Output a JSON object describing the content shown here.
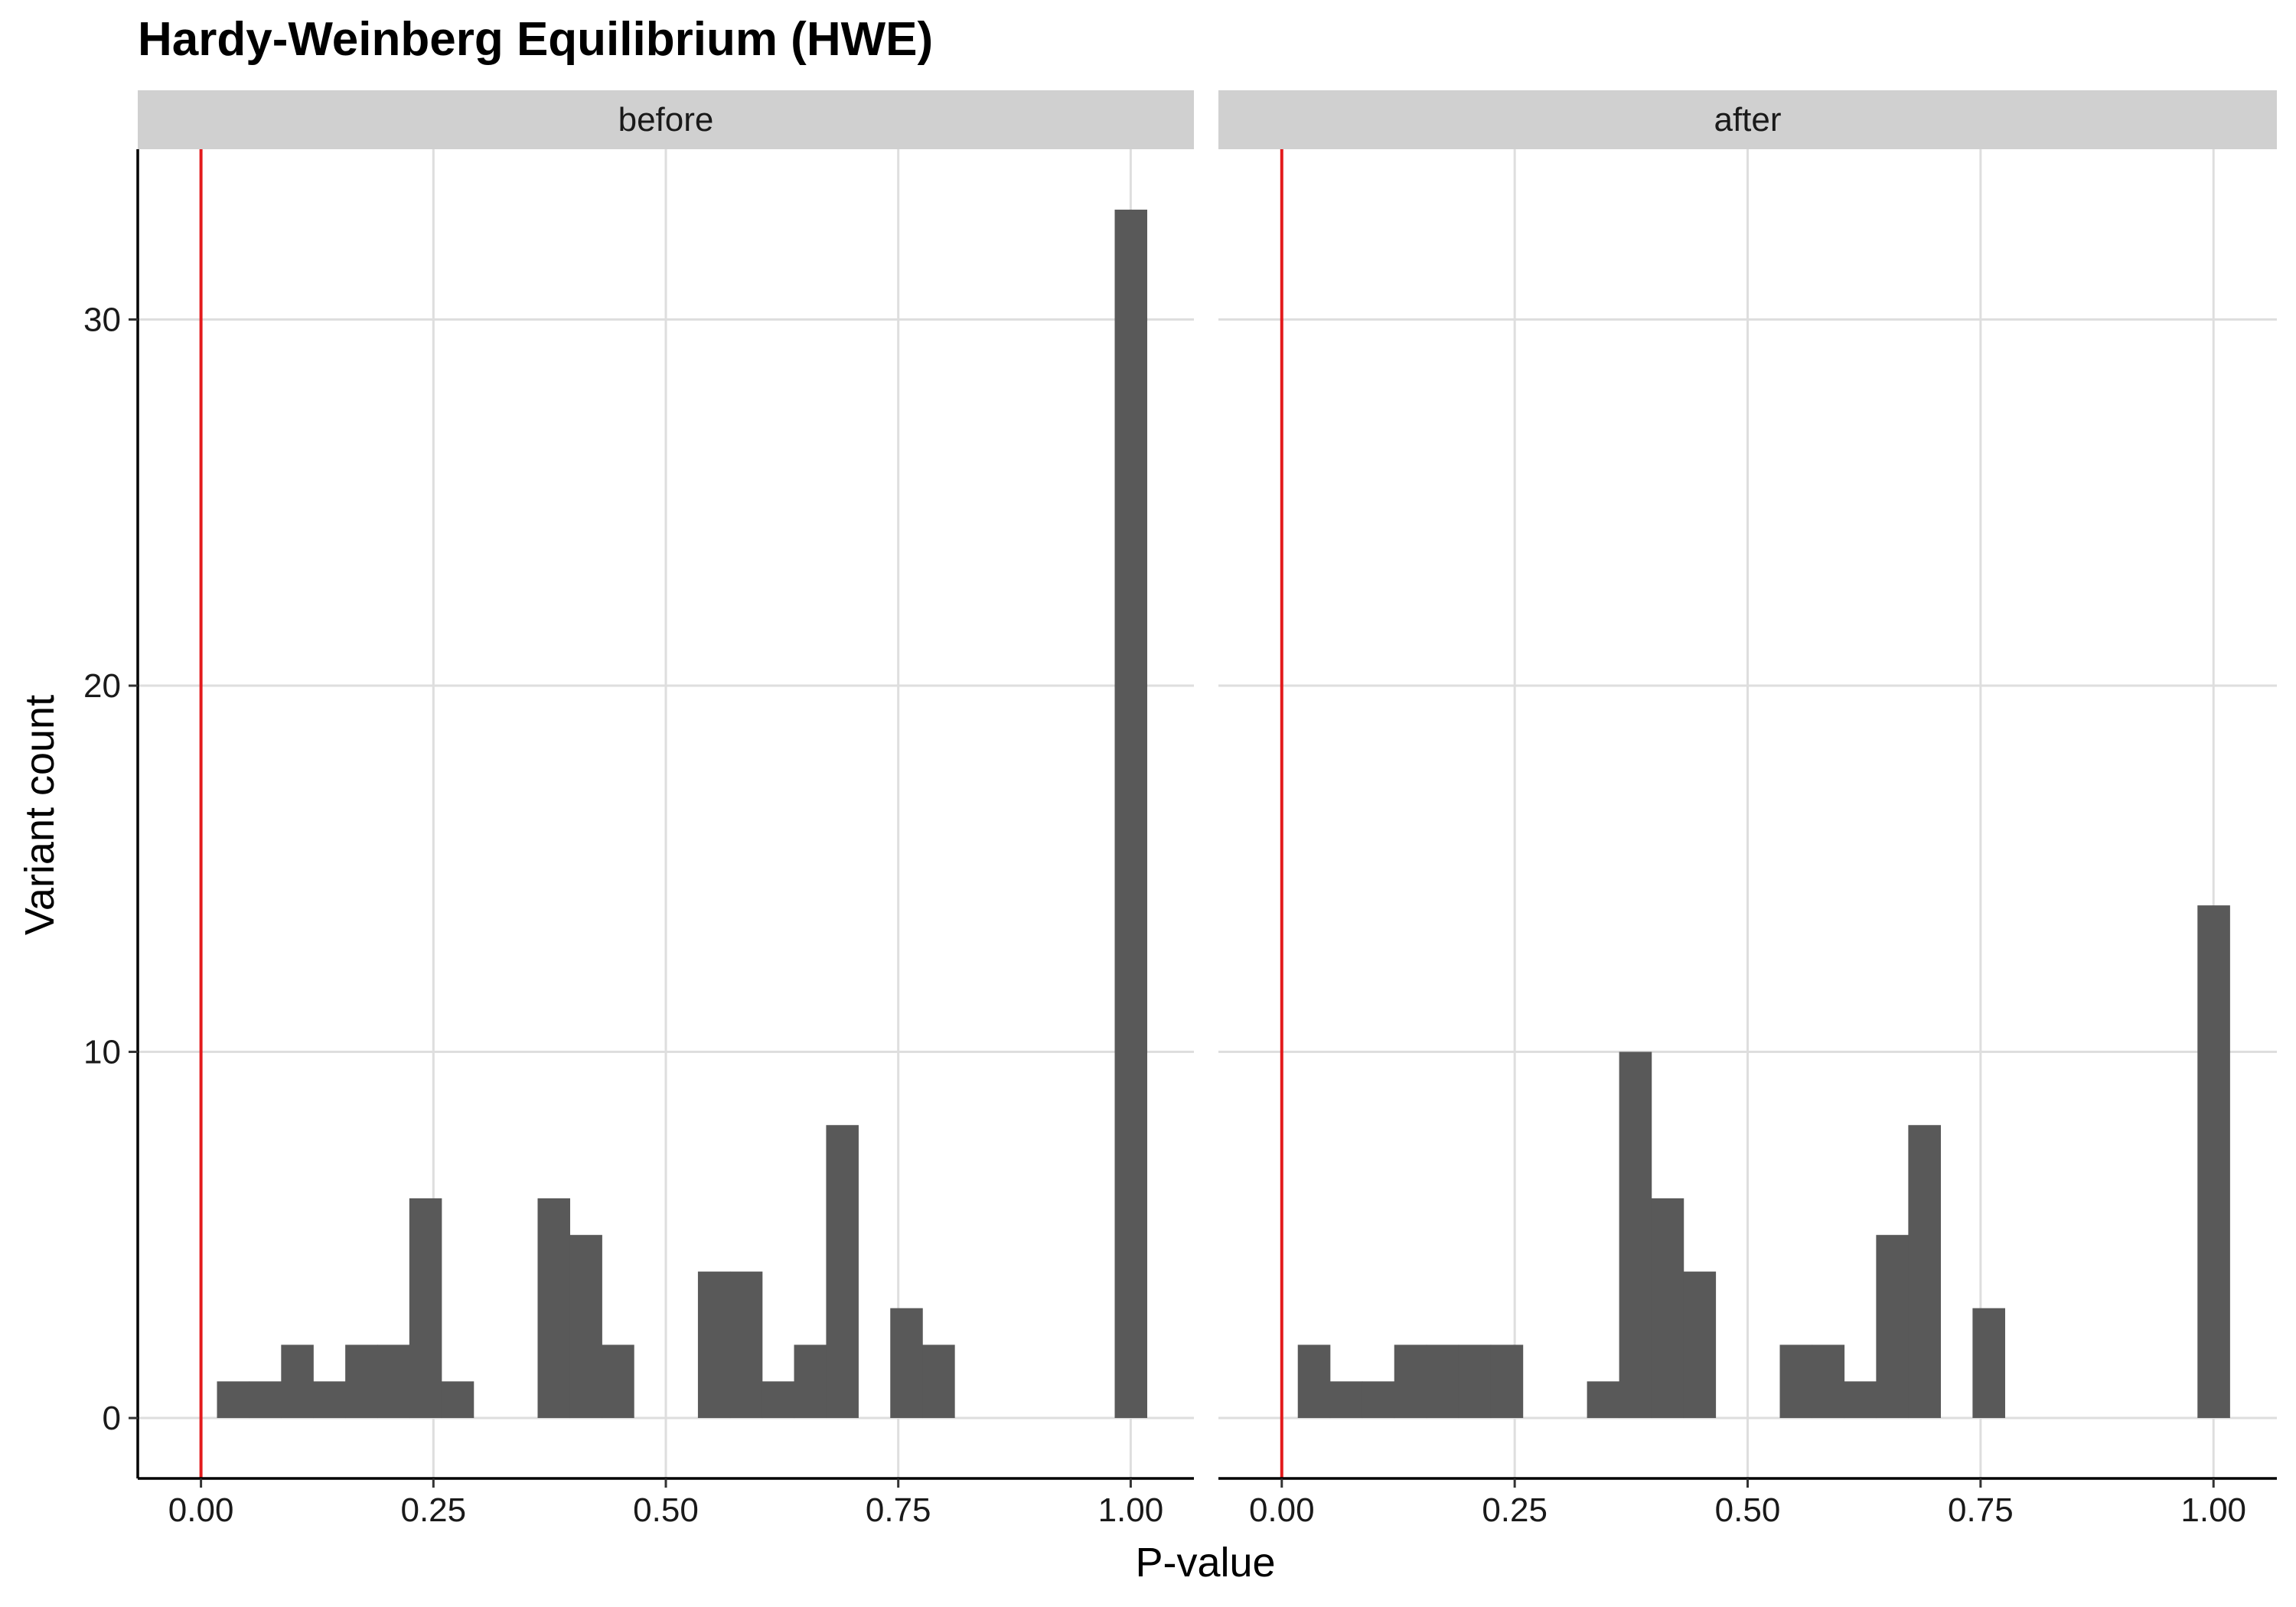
{
  "chart_data": {
    "type": "bar",
    "title": "Hardy-Weinberg Equilibrium (HWE)",
    "xlabel": "P-value",
    "ylabel": "Variant count",
    "xlim": [
      -0.068,
      1.068
    ],
    "ylim": [
      -1.65,
      34.65
    ],
    "x_ticks": [
      0.0,
      0.25,
      0.5,
      0.75,
      1.0
    ],
    "x_tick_labels": [
      "0.00",
      "0.25",
      "0.50",
      "0.75",
      "1.00"
    ],
    "y_ticks": [
      0,
      10,
      20,
      30
    ],
    "y_tick_labels": [
      "0",
      "10",
      "20",
      "30"
    ],
    "grid": true,
    "threshold_line": {
      "x": 0.0,
      "color": "#e31a1c"
    },
    "bar_color": "#595959",
    "bin_width": 0.0345,
    "facets": [
      {
        "label": "before",
        "bins": [
          {
            "x_start": 0.0172,
            "count": 1
          },
          {
            "x_start": 0.0517,
            "count": 1
          },
          {
            "x_start": 0.0862,
            "count": 2
          },
          {
            "x_start": 0.1207,
            "count": 1
          },
          {
            "x_start": 0.1552,
            "count": 2
          },
          {
            "x_start": 0.1897,
            "count": 2
          },
          {
            "x_start": 0.2241,
            "count": 6
          },
          {
            "x_start": 0.2586,
            "count": 1
          },
          {
            "x_start": 0.3621,
            "count": 6
          },
          {
            "x_start": 0.3966,
            "count": 5
          },
          {
            "x_start": 0.431,
            "count": 2
          },
          {
            "x_start": 0.5345,
            "count": 4
          },
          {
            "x_start": 0.569,
            "count": 4
          },
          {
            "x_start": 0.6034,
            "count": 1
          },
          {
            "x_start": 0.6379,
            "count": 2
          },
          {
            "x_start": 0.6724,
            "count": 8
          },
          {
            "x_start": 0.7414,
            "count": 3
          },
          {
            "x_start": 0.7759,
            "count": 2
          },
          {
            "x_start": 0.9828,
            "count": 33
          }
        ]
      },
      {
        "label": "after",
        "bins": [
          {
            "x_start": 0.0172,
            "count": 2
          },
          {
            "x_start": 0.0517,
            "count": 1
          },
          {
            "x_start": 0.0862,
            "count": 1
          },
          {
            "x_start": 0.1207,
            "count": 2
          },
          {
            "x_start": 0.1552,
            "count": 2
          },
          {
            "x_start": 0.1897,
            "count": 2
          },
          {
            "x_start": 0.2241,
            "count": 2
          },
          {
            "x_start": 0.3276,
            "count": 1
          },
          {
            "x_start": 0.3621,
            "count": 10
          },
          {
            "x_start": 0.3966,
            "count": 6
          },
          {
            "x_start": 0.431,
            "count": 4
          },
          {
            "x_start": 0.5345,
            "count": 2
          },
          {
            "x_start": 0.569,
            "count": 2
          },
          {
            "x_start": 0.6034,
            "count": 1
          },
          {
            "x_start": 0.6379,
            "count": 5
          },
          {
            "x_start": 0.6724,
            "count": 8
          },
          {
            "x_start": 0.7414,
            "count": 3
          },
          {
            "x_start": 0.9828,
            "count": 14
          }
        ]
      }
    ]
  }
}
